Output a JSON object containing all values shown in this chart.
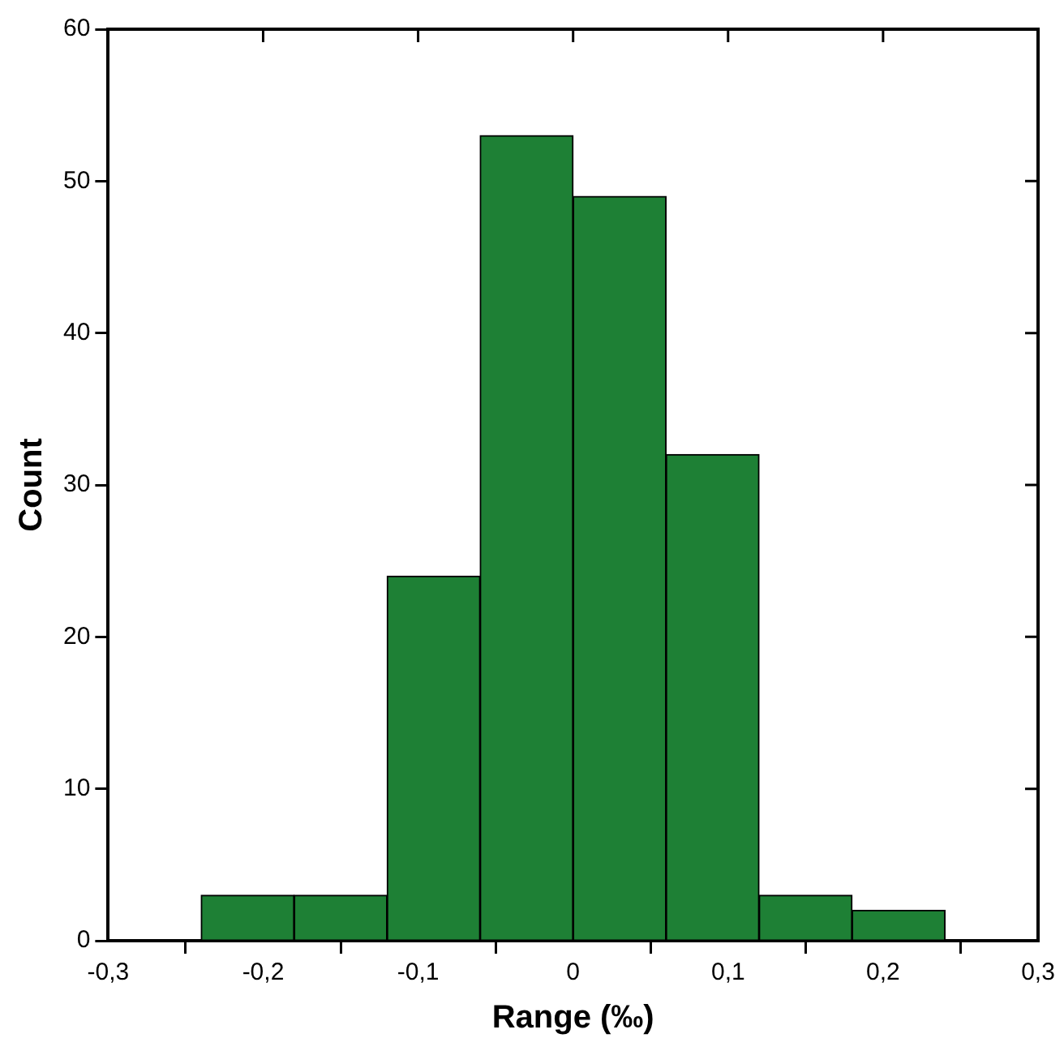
{
  "chart_data": {
    "type": "histogram",
    "xlabel": "Range (‰)",
    "ylabel": "Count",
    "bins": [
      -0.24,
      -0.18,
      -0.12,
      -0.06,
      0,
      0.06,
      0.12,
      0.18,
      0.24
    ],
    "values": [
      3,
      3,
      24,
      53,
      49,
      32,
      3,
      2
    ],
    "color": "#1e8035",
    "xlim": [
      -0.3,
      0.3
    ],
    "xticks": [
      {
        "value": -0.3,
        "label": "-0,3"
      },
      {
        "value": -0.2,
        "label": "-0,2"
      },
      {
        "value": -0.1,
        "label": "-0,1"
      },
      0,
      {
        "value": 0.1,
        "label": "0,1"
      },
      {
        "value": 0.2,
        "label": "0,2"
      },
      {
        "value": 0.3,
        "label": "0,3"
      }
    ],
    "ylim": [
      0,
      60
    ],
    "yticks": [
      0,
      10,
      20,
      30,
      40,
      50,
      60
    ],
    "grid": false,
    "legend": false
  }
}
